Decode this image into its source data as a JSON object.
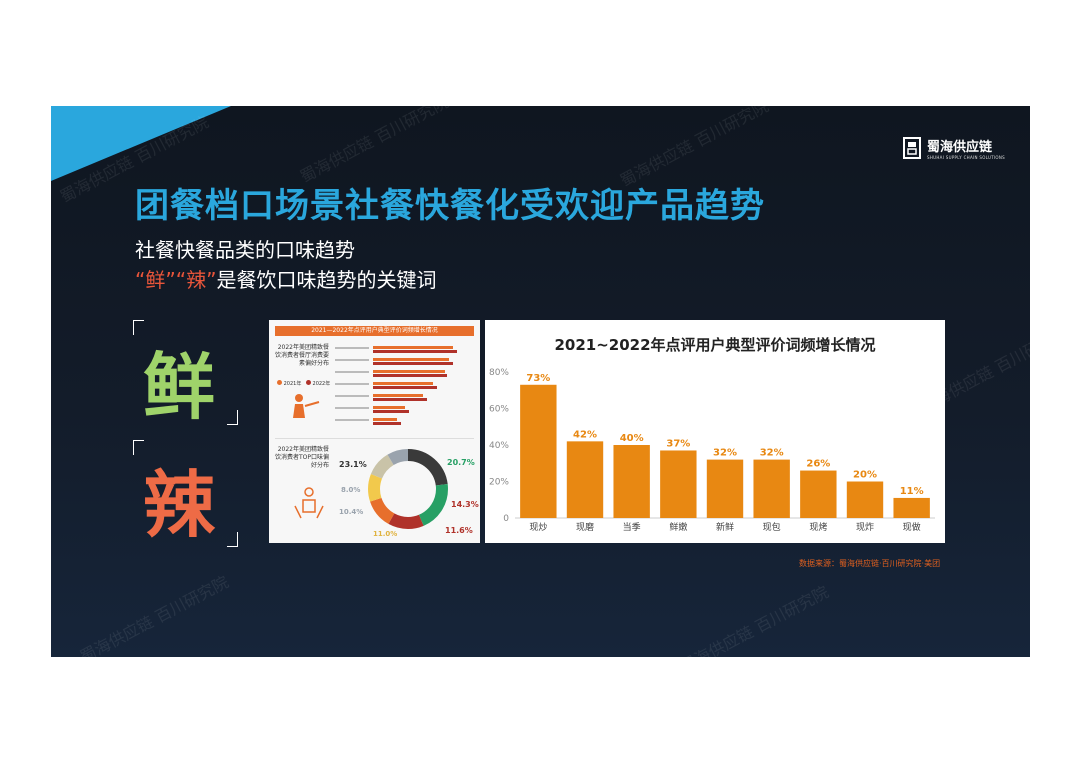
{
  "logo": {
    "name": "蜀海供应链",
    "tagline": "SHUHAI SUPPLY CHAIN SOLUTIONS"
  },
  "watermark_text": "蜀海供应链 百川研究院",
  "title": "团餐档口场景社餐快餐化受欢迎产品趋势",
  "subtitle": "社餐快餐品类的口味趋势",
  "keywords_line": {
    "q1": "“鲜”",
    "q2": "“辣”",
    "rest": "是餐饮口味趋势的关键词"
  },
  "big_chars": {
    "xian": "鲜",
    "la": "辣"
  },
  "colors": {
    "accent_blue": "#2aa7dd",
    "bar_orange": "#e88812",
    "xian_green": "#9fd36a",
    "la_red": "#ee6b46"
  },
  "left_panel": {
    "header": "2021—2022年点评用户典型评价词频增长情况",
    "section1_label": "2022年美团精致餐饮消费者餐厅消费要素偏好分布",
    "legend": [
      "2021年",
      "2022年"
    ],
    "section2_label": "2022年美团精致餐饮消费者TOP口味偏好分布",
    "donut_values": [
      "23.1%",
      "20.7%",
      "8.0%",
      "10.4%",
      "11.0%",
      "14.3%",
      "11.6%"
    ]
  },
  "chart_data": {
    "type": "bar",
    "title": "2021~2022年点评用户典型评价词频增长情况",
    "categories": [
      "现炒",
      "现磨",
      "当季",
      "鲜嫩",
      "新鲜",
      "现包",
      "现烤",
      "现炸",
      "现做"
    ],
    "values": [
      73,
      42,
      40,
      37,
      32,
      32,
      26,
      20,
      11
    ],
    "value_labels": [
      "73%",
      "42%",
      "40%",
      "37%",
      "32%",
      "32%",
      "26%",
      "20%",
      "11%"
    ],
    "ylim": [
      0,
      80
    ],
    "yticks": [
      0,
      20,
      40,
      60,
      80
    ],
    "ytick_labels": [
      "0",
      "20%",
      "40%",
      "60%",
      "80%"
    ],
    "xlabel": "",
    "ylabel": "",
    "grid": false,
    "bar_color": "#e88812"
  },
  "source": "数据来源：蜀海供应链·百川研究院·美团"
}
